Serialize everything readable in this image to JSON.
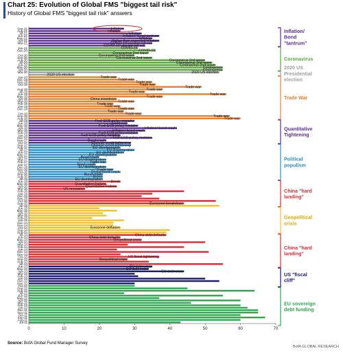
{
  "header": {
    "title": "Chart 25: Evolution of Global FMS \"biggest tail risk\"",
    "subtitle": "History of Global FMS \"biggest tail risk\" answers"
  },
  "footer": {
    "source_label": "Source:",
    "source_text": "BofA Global Fund Manager Survey",
    "credit": "BofA GLOBAL RESEARCH"
  },
  "chart_data": {
    "type": "bar",
    "orientation": "horizontal",
    "xlim": [
      0,
      70
    ],
    "x_ticks": [
      0,
      10,
      20,
      30,
      40,
      50,
      60,
      70
    ],
    "grid": false,
    "bars": [
      {
        "date": "Sep-21",
        "value": 27,
        "label": "Inflation",
        "color": "#5b2c8f"
      },
      {
        "date": "Aug-21",
        "value": 26,
        "label": "Inflation",
        "color": "#5b2c8f"
      },
      {
        "date": "Jul-21",
        "value": 32,
        "label": "Inflation",
        "color": "#5b2c8f"
      },
      {
        "date": "Jun-21",
        "value": 37,
        "label": "Inflation/ Bond tantrum",
        "color": "#5b2c8f"
      },
      {
        "date": "May-21",
        "value": 35,
        "label": "Inflation",
        "color": "#5b2c8f"
      },
      {
        "date": "Apr-21",
        "value": 37,
        "label": "Higher than expected inflation",
        "color": "#5b2c8f"
      },
      {
        "date": "Mar-21",
        "value": 35,
        "label": "COVID-19 vaccine roll out",
        "color": "#5b2c8f"
      },
      {
        "date": "Feb-21",
        "value": 33,
        "label": "COVID-19 vaccine roll out",
        "color": "#5b2c8f"
      },
      {
        "date": "Jan-21",
        "value": 31,
        "label": "COVID-19",
        "color": "#5ba33b"
      },
      {
        "date": "Dec-20",
        "value": 36,
        "label": "COVID-19",
        "color": "#5ba33b"
      },
      {
        "date": "Nov-20",
        "value": 34,
        "label": "Coronavirus 2nd wave",
        "color": "#5ba33b"
      },
      {
        "date": "Oct-20",
        "value": 30,
        "label": "Coronavirus 2nd wave",
        "color": "#5ba33b"
      },
      {
        "date": "Sep-20",
        "value": 35,
        "label": "Coronavirus 2nd wave",
        "color": "#5ba33b"
      },
      {
        "date": "Aug-20",
        "value": 50,
        "label": "Coronavirus 2nd wave",
        "color": "#5ba33b"
      },
      {
        "date": "Jul-20",
        "value": 52,
        "label": "Coronavirus 2nd wave",
        "color": "#5ba33b"
      },
      {
        "date": "Jun-20",
        "value": 53,
        "label": "Coronavirus 2nd wave",
        "color": "#5ba33b"
      },
      {
        "date": "May-20",
        "value": 55,
        "label": "Coronavirus",
        "color": "#5ba33b"
      },
      {
        "date": "Apr-20",
        "value": 55,
        "label": "Coronavirus",
        "color": "#5ba33b"
      },
      {
        "date": "Mar-20",
        "value": 54,
        "label": "2020 US election",
        "color": "#a0a0a0"
      },
      {
        "date": "Feb-20",
        "value": 13,
        "label": "2020 US election",
        "color": "#a0a0a0"
      },
      {
        "date": "Jan-20",
        "value": 25,
        "label": "Trade war",
        "color": "#e8812f"
      },
      {
        "date": "Dec-19",
        "value": 30,
        "label": "Trade war",
        "color": "#e8812f"
      },
      {
        "date": "Nov-19",
        "value": 35,
        "label": "Trade war",
        "color": "#e8812f"
      },
      {
        "date": "Oct-19",
        "value": 36,
        "label": "Trade war",
        "color": "#e8812f"
      },
      {
        "date": "Sep-19",
        "value": 49,
        "label": "Trade war",
        "color": "#e8812f"
      },
      {
        "date": "Aug-19",
        "value": 38,
        "label": "Trade war",
        "color": "#e8812f"
      },
      {
        "date": "Jul-19",
        "value": 33,
        "label": "Trade war",
        "color": "#e8812f"
      },
      {
        "date": "Jun-19",
        "value": 56,
        "label": "Trade war",
        "color": "#e8812f"
      },
      {
        "date": "May-19",
        "value": 38,
        "label": "Trade war",
        "color": "#e8812f"
      },
      {
        "date": "Apr-19",
        "value": 25,
        "label": "China slowdown",
        "color": "#e8812f"
      },
      {
        "date": "Mar-19",
        "value": 30,
        "label": "Trade war",
        "color": "#e8812f"
      },
      {
        "date": "Feb-19",
        "value": 24,
        "label": "Trade war",
        "color": "#e8812f"
      },
      {
        "date": "Jan-19",
        "value": 26,
        "label": "Trade war",
        "color": "#e8812f"
      },
      {
        "date": "Dec-18",
        "value": 30,
        "label": "Trade war",
        "color": "#e8812f"
      },
      {
        "date": "Nov-18",
        "value": 27,
        "label": "Trade war",
        "color": "#e8812f"
      },
      {
        "date": "Oct-18",
        "value": 32,
        "label": "Trade war",
        "color": "#e8812f"
      },
      {
        "date": "Sep-18",
        "value": 57,
        "label": "Trade war",
        "color": "#e8812f"
      },
      {
        "date": "Aug-18",
        "value": 60,
        "label": "Trade war",
        "color": "#e8812f"
      },
      {
        "date": "Jul-18",
        "value": 30,
        "label": "Fed/ ECB policy mistake",
        "color": "#5b2c8f"
      },
      {
        "date": "Jun-18",
        "value": 28,
        "label": "Trade war",
        "color": "#5b2c8f"
      },
      {
        "date": "May-18",
        "value": 31,
        "label": "Fed/ ECB policy mistake",
        "color": "#5b2c8f"
      },
      {
        "date": "Apr-18",
        "value": 42,
        "label": "Inflation/ bond crash",
        "color": "#5b2c8f"
      },
      {
        "date": "Mar-18",
        "value": 33,
        "label": "Inflation/ bond crash",
        "color": "#5b2c8f"
      },
      {
        "date": "Feb-18",
        "value": 31,
        "label": "Fed/ ECB policy mistake",
        "color": "#5b2c8f"
      },
      {
        "date": "Jan-18",
        "value": 26,
        "label": "Fed/ ECB policy mistake",
        "color": "#5b2c8f"
      },
      {
        "date": "Dec-17",
        "value": 35,
        "label": "Fed/ ECB policy mistake",
        "color": "#5b2c8f"
      },
      {
        "date": "Nov-17",
        "value": 22,
        "label": "Bond crash",
        "color": "#5b2c8f"
      },
      {
        "date": "Oct-17",
        "value": 29,
        "label": "Chinese credit tightening",
        "color": "#5b2c8f"
      },
      {
        "date": "Sep-17",
        "value": 29,
        "label": "Chinese credit tightening",
        "color": "#2b8ec9"
      },
      {
        "date": "Aug-17",
        "value": 26,
        "label": "EU disintegration",
        "color": "#2b8ec9"
      },
      {
        "date": "Jul-17",
        "value": 30,
        "label": "EU disintegration",
        "color": "#2b8ec9"
      },
      {
        "date": "Jun-17",
        "value": 27,
        "label": "EU disintegration",
        "color": "#2b8ec9"
      },
      {
        "date": "May-17",
        "value": 25,
        "label": "EU disintegration",
        "color": "#2b8ec9"
      },
      {
        "date": "Apr-17",
        "value": 20,
        "label": "Bond crash",
        "color": "#2b8ec9"
      },
      {
        "date": "Mar-17",
        "value": 22,
        "label": "EU disintegration",
        "color": "#2b8ec9"
      },
      {
        "date": "Feb-17",
        "value": 22,
        "label": "Trade war",
        "color": "#2b8ec9"
      },
      {
        "date": "Jan-17",
        "value": 19,
        "label": "Bond crash",
        "color": "#2b8ec9"
      },
      {
        "date": "Dec-16",
        "value": 22,
        "label": "EU disintegration",
        "color": "#2b8ec9"
      },
      {
        "date": "Nov-16",
        "value": 24,
        "label": "Trade war",
        "color": "#2b8ec9"
      },
      {
        "date": "Oct-16",
        "value": 26,
        "label": "Global bond crash",
        "color": "#2b8ec9"
      },
      {
        "date": "Sep-16",
        "value": 21,
        "label": "Bond crash",
        "color": "#2b8ec9"
      },
      {
        "date": "Aug-16",
        "value": 21,
        "label": "Brexit",
        "color": "#2b8ec9"
      },
      {
        "date": "Jul-16",
        "value": 21,
        "label": "EU disintegration",
        "color": "#2b8ec9"
      },
      {
        "date": "Jun-16",
        "value": 26,
        "label": "Brexit",
        "color": "#e22a34"
      },
      {
        "date": "May-16",
        "value": 22,
        "label": "Quantitative Failure",
        "color": "#e22a34"
      },
      {
        "date": "Apr-16",
        "value": 25,
        "label": "Quantitative Failure",
        "color": "#e22a34"
      },
      {
        "date": "Mar-16",
        "value": 16,
        "label": "US recession",
        "color": "#e22a34"
      },
      {
        "date": "Feb-16",
        "value": 44,
        "label": "",
        "color": "#e22a34"
      },
      {
        "date": "Jan-16",
        "value": 35,
        "label": "",
        "color": "#e22a34"
      },
      {
        "date": "Dec-15",
        "value": 32,
        "label": "",
        "color": "#e22a34"
      },
      {
        "date": "Nov-15",
        "value": 37,
        "label": "",
        "color": "#e22a34"
      },
      {
        "date": "Oct-15",
        "value": 53,
        "label": "",
        "color": "#e22a34"
      },
      {
        "date": "Sep-15",
        "value": 44,
        "label": "Eurozone breakdown",
        "color": "#e22a34"
      },
      {
        "date": "Jul-15",
        "value": 54,
        "label": "",
        "color": "#f2c12e"
      },
      {
        "date": "Jun-15",
        "value": 20,
        "label": "",
        "color": "#f2c12e"
      },
      {
        "date": "May-15",
        "value": 25,
        "label": "",
        "color": "#f2c12e"
      },
      {
        "date": "Apr-15",
        "value": 21,
        "label": "",
        "color": "#f2c12e"
      },
      {
        "date": "Mar-15",
        "value": 22,
        "label": "",
        "color": "#f2c12e"
      },
      {
        "date": "Feb-15",
        "value": 18,
        "label": "",
        "color": "#f2c12e"
      },
      {
        "date": "Jan-15",
        "value": 27,
        "label": "",
        "color": "#f2c12e"
      },
      {
        "date": "Dec-14",
        "value": 24,
        "label": "",
        "color": "#f2c12e"
      },
      {
        "date": "Nov-14",
        "value": 24,
        "label": "",
        "color": "#f2c12e"
      },
      {
        "date": "Oct-14",
        "value": 26,
        "label": "Eurozone deflation",
        "color": "#f2c12e"
      },
      {
        "date": "Sep-14",
        "value": 40,
        "label": "",
        "color": "#f2c12e"
      },
      {
        "date": "Aug-14",
        "value": 39,
        "label": "",
        "color": "#f2c12e"
      },
      {
        "date": "Jul-14",
        "value": 39,
        "label": "China debt defaults",
        "color": "#e22a34"
      },
      {
        "date": "Jun-14",
        "value": 26,
        "label": "China debt defaults",
        "color": "#e22a34"
      },
      {
        "date": "May-14",
        "value": 32,
        "label": "Geopolitical crisis",
        "color": "#e22a34"
      },
      {
        "date": "Apr-14",
        "value": 50,
        "label": "",
        "color": "#e22a34"
      },
      {
        "date": "Mar-14",
        "value": 28,
        "label": "",
        "color": "#e22a34"
      },
      {
        "date": "Feb-14",
        "value": 44,
        "label": "",
        "color": "#e22a34"
      },
      {
        "date": "Jan-14",
        "value": 25,
        "label": "",
        "color": "#e22a34"
      },
      {
        "date": "Dec-13",
        "value": 51,
        "label": "",
        "color": "#e22a34"
      },
      {
        "date": "Nov-13",
        "value": 26,
        "label": "",
        "color": "#e22a34"
      },
      {
        "date": "Oct-13",
        "value": 37,
        "label": "US fiscal tightening",
        "color": "#e22a34"
      },
      {
        "date": "Sep-13",
        "value": 28,
        "label": "Geopolitical crisis",
        "color": "#e22a34"
      },
      {
        "date": "Aug-13",
        "value": 34,
        "label": "",
        "color": "#e22a34"
      },
      {
        "date": "Jul-13",
        "value": 55,
        "label": "",
        "color": "#e22a34"
      },
      {
        "date": "Jun-13",
        "value": 35,
        "label": "EU debt crisis",
        "color": "#1a1a6e"
      },
      {
        "date": "May-13",
        "value": 34,
        "label": "EU debt crisis",
        "color": "#1a1a6e"
      },
      {
        "date": "Apr-13",
        "value": 44,
        "label": "EU debt crisis",
        "color": "#1a1a6e"
      },
      {
        "date": "Mar-13",
        "value": 30,
        "label": "",
        "color": "#1a1a6e"
      },
      {
        "date": "Feb-13",
        "value": 31,
        "label": "",
        "color": "#1a1a6e"
      },
      {
        "date": "Jan-13",
        "value": 50,
        "label": "",
        "color": "#1a1a6e"
      },
      {
        "date": "Dec-12",
        "value": 54,
        "label": "",
        "color": "#1a1a6e"
      },
      {
        "date": "Nov-12",
        "value": 30,
        "label": "",
        "color": "#1a1a6e"
      },
      {
        "date": "Oct-12",
        "value": 30,
        "label": "",
        "color": "#2fa84f"
      },
      {
        "date": "Sep-12",
        "value": 45,
        "label": "",
        "color": "#2fa84f"
      },
      {
        "date": "Aug-12",
        "value": 64,
        "label": "",
        "color": "#2fa84f"
      },
      {
        "date": "Jul-12",
        "value": 27,
        "label": "",
        "color": "#2fa84f"
      },
      {
        "date": "Jun-12",
        "value": 55,
        "label": "",
        "color": "#2fa84f"
      },
      {
        "date": "May-12",
        "value": 37,
        "label": "",
        "color": "#2fa84f"
      },
      {
        "date": "Apr-12",
        "value": 60,
        "label": "",
        "color": "#2fa84f"
      },
      {
        "date": "Mar-12",
        "value": 46,
        "label": "",
        "color": "#2fa84f"
      },
      {
        "date": "Feb-12",
        "value": 60,
        "label": "",
        "color": "#2fa84f"
      },
      {
        "date": "Jan-12",
        "value": 62,
        "label": "",
        "color": "#2fa84f"
      },
      {
        "date": "Dec-11",
        "value": 65,
        "label": "",
        "color": "#2fa84f"
      },
      {
        "date": "Nov-11",
        "value": 65,
        "label": "",
        "color": "#2fa84f"
      },
      {
        "date": "Oct-11",
        "value": 60,
        "label": "",
        "color": "#2fa84f"
      },
      {
        "date": "Sep-11",
        "value": 67,
        "label": "",
        "color": "#2fa84f"
      },
      {
        "date": "Aug-11",
        "value": 60,
        "label": "",
        "color": "#2fa84f"
      },
      {
        "date": "Jul-11",
        "value": 43,
        "label": "",
        "color": "#2fa84f"
      }
    ],
    "axis_date_labels": [
      "Sep-21",
      "Aug-21",
      "Jul-21",
      "Jun-21",
      "May-21",
      "Apr-21",
      "Mar-21",
      "Jan-21",
      "Dec-20",
      "Oct-20",
      "Sep-20",
      "Aug-20",
      "Jul-20",
      "Jun-20",
      "May-20",
      "Apr-20",
      "Mar-20",
      "Jan-20",
      "Dec-19",
      "Nov-19",
      "Oct-19",
      "Aug-19",
      "Jul-19",
      "Jun-19",
      "May-19",
      "Apr-19",
      "Mar-19",
      "Feb-19",
      "Jan-19",
      "Dec-18",
      "Oct-18",
      "Sep-18",
      "Aug-18",
      "Jul-18",
      "Jun-18",
      "May-18",
      "Apr-18",
      "Mar-18",
      "Feb-18",
      "Jan-18",
      "Dec-17",
      "Nov-17",
      "Oct-17",
      "Sep-17",
      "Aug-17",
      "Jul-17",
      "Jun-17",
      "May-17",
      "Apr-17",
      "Mar-17",
      "Feb-17",
      "Jan-17",
      "Dec-16",
      "Nov-16",
      "Oct-16",
      "Sep-16",
      "Aug-16",
      "Jul-16",
      "Jun-16",
      "May-16",
      "Apr-16",
      "Mar-16",
      "Feb-16",
      "Jan-16",
      "Dec-15",
      "Nov-15",
      "Oct-15",
      "Sep-15",
      "Jul-15",
      "Jun-15",
      "May-15",
      "Apr-15",
      "Mar-15",
      "Feb-15",
      "Jan-15",
      "Dec-14",
      "Nov-14",
      "Oct-14",
      "Sep-14",
      "Aug-14",
      "Jul-14",
      "Jun-14",
      "May-14",
      "Apr-14",
      "Mar-14",
      "Feb-14",
      "Jan-14",
      "Dec-13",
      "Nov-13",
      "Oct-13",
      "Sep-13",
      "Aug-13",
      "Jul-13",
      "Jun-13",
      "May-13",
      "Apr-13",
      "Mar-13",
      "Feb-13",
      "Jan-13",
      "Dec-12",
      "Nov-12",
      "Oct-12",
      "Sep-12",
      "Aug-12",
      "Jul-12",
      "Jun-12",
      "May-12",
      "Apr-12",
      "Mar-12",
      "Feb-12",
      "Jan-12",
      "Dec-11",
      "Nov-11",
      "Oct-11",
      "Sep-11",
      "Aug-11",
      "Jul-11"
    ],
    "brackets": [
      {
        "from": 0,
        "to": 7,
        "label": "Inflation/ Bond \"tantrum\"",
        "color": "#5b2c8f"
      },
      {
        "from": 8,
        "to": 17,
        "label": "Coronavirus",
        "color": "#5ba33b"
      },
      {
        "from": 18,
        "to": 19,
        "label": "2020 US Presidential election",
        "color": "#a0a0a0"
      },
      {
        "from": 20,
        "to": 37,
        "label": "Trade War",
        "color": "#e8812f"
      },
      {
        "from": 38,
        "to": 47,
        "label": "Quantitative Tightening",
        "color": "#5b2c8f"
      },
      {
        "from": 48,
        "to": 62,
        "label": "Political populism",
        "color": "#2b8ec9"
      },
      {
        "from": 63,
        "to": 73,
        "label": "China \"hard landing\"",
        "color": "#e22a34"
      },
      {
        "from": 74,
        "to": 84,
        "label": "Geopolitical crisis",
        "color": "#f2c12e"
      },
      {
        "from": 85,
        "to": 98,
        "label": "China \"hard landing\"",
        "color": "#e22a34"
      },
      {
        "from": 99,
        "to": 106,
        "label": "US \"fiscal cliff\"",
        "color": "#1a1a6e"
      },
      {
        "from": 107,
        "to": 122,
        "label": "EU sovereign debt funding",
        "color": "#2fa84f"
      }
    ]
  }
}
